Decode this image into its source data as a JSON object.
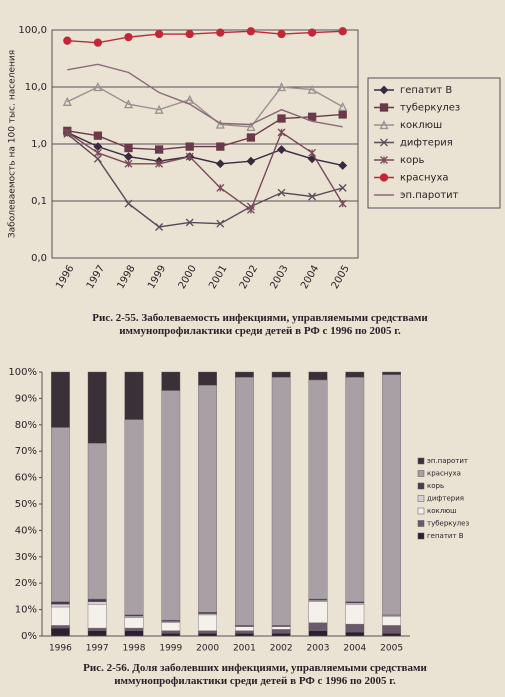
{
  "chart_data": [
    {
      "type": "line",
      "y_label": "Заболеваемость на 100 тыс. населения",
      "caption": "Рис. 2-55. Заболеваемость инфекциями, управляемыми средствами иммунопрофилактики среди детей в РФ с 1996 по 2005 г.",
      "categories": [
        "1996",
        "1997",
        "1998",
        "1999",
        "2000",
        "2001",
        "2002",
        "2003",
        "2004",
        "2005"
      ],
      "ylim": [
        0.01,
        100
      ],
      "log_y": true,
      "grid": true,
      "legend": "right",
      "yticks": [
        {
          "value": 0.01,
          "label": "0,0"
        },
        {
          "value": 0.1,
          "label": "0,1"
        },
        {
          "value": 1,
          "label": "1,0"
        },
        {
          "value": 10,
          "label": "10,0"
        },
        {
          "value": 100,
          "label": "100,0"
        }
      ],
      "series": [
        {
          "name": "гепатит В",
          "color": "#3a2a40",
          "marker": "diamond",
          "values": [
            1.6,
            0.9,
            0.6,
            0.5,
            0.6,
            0.45,
            0.5,
            0.8,
            0.55,
            0.42
          ]
        },
        {
          "name": "туберкулез",
          "color": "#6b3a4a",
          "marker": "square",
          "values": [
            1.7,
            1.4,
            0.85,
            0.8,
            0.9,
            0.9,
            1.3,
            2.8,
            3.0,
            3.3
          ]
        },
        {
          "name": "коклюш",
          "color": "#9a9090",
          "marker": "triangle",
          "values": [
            5.5,
            10,
            5,
            4,
            6,
            2.2,
            2,
            10,
            9,
            4.5
          ]
        },
        {
          "name": "дифтерия",
          "color": "#5a4a5a",
          "marker": "x",
          "values": [
            1.5,
            0.55,
            0.09,
            0.035,
            0.042,
            0.04,
            0.08,
            0.14,
            0.12,
            0.17
          ]
        },
        {
          "name": "корь",
          "color": "#7a4a5a",
          "marker": "asterisk",
          "values": [
            1.6,
            0.7,
            0.45,
            0.45,
            0.6,
            0.17,
            0.07,
            1.6,
            0.7,
            0.09
          ]
        },
        {
          "name": "краснуха",
          "color": "#c0283a",
          "marker": "circle",
          "values": [
            65,
            60,
            75,
            85,
            85,
            90,
            95,
            85,
            90,
            95
          ]
        },
        {
          "name": "эп.паротит",
          "color": "#8a6a78",
          "marker": "none",
          "values": [
            20,
            25,
            18,
            8,
            5,
            2.3,
            2.2,
            4,
            2.5,
            2
          ]
        }
      ]
    },
    {
      "type": "stacked_bar",
      "caption": "Рис. 2-56. Доля заболевших инфекциями, управляемыми средствами иммунопрофилактики среди детей в РФ с 1996 по 2005 г.",
      "categories": [
        "1996",
        "1997",
        "1998",
        "1999",
        "2000",
        "2001",
        "2002",
        "2003",
        "2004",
        "2005"
      ],
      "ylim": [
        0,
        100
      ],
      "grid": false,
      "legend": "right",
      "yticks": [
        {
          "value": 0,
          "label": "0%"
        },
        {
          "value": 10,
          "label": "10%"
        },
        {
          "value": 20,
          "label": "20%"
        },
        {
          "value": 30,
          "label": "30%"
        },
        {
          "value": 40,
          "label": "40%"
        },
        {
          "value": 50,
          "label": "50%"
        },
        {
          "value": 60,
          "label": "60%"
        },
        {
          "value": 70,
          "label": "70%"
        },
        {
          "value": 80,
          "label": "80%"
        },
        {
          "value": 90,
          "label": "90%"
        },
        {
          "value": 100,
          "label": "100%"
        }
      ],
      "series": [
        {
          "name": "гепатит В",
          "color": "#2a2030",
          "values": [
            3,
            2,
            2,
            1,
            1,
            1,
            1,
            2,
            1.5,
            1
          ]
        },
        {
          "name": "туберкулез",
          "color": "#6a5a6a",
          "values": [
            1,
            1,
            1,
            1,
            1,
            1,
            1.5,
            3,
            3,
            3
          ]
        },
        {
          "name": "коклюш",
          "color": "#f4f0ea",
          "values": [
            7,
            9,
            4,
            3,
            6,
            1.5,
            1,
            8,
            7.5,
            3.5
          ]
        },
        {
          "name": "дифтерия",
          "color": "#d8d0d8",
          "values": [
            1,
            1,
            0.5,
            0.5,
            0.5,
            0.2,
            0.2,
            0.5,
            0.5,
            0.3
          ]
        },
        {
          "name": "корь",
          "color": "#4a3a4a",
          "values": [
            1,
            1,
            0.5,
            0.5,
            0.5,
            0.3,
            0.3,
            0.5,
            0.5,
            0.2
          ]
        },
        {
          "name": "краснуха",
          "color": "#a8a0a4",
          "values": [
            66,
            59,
            74,
            87,
            86,
            94,
            94,
            83,
            85,
            91
          ]
        },
        {
          "name": "эп.паротит",
          "color": "#3a3038",
          "values": [
            21,
            27,
            18,
            7,
            5,
            2,
            2,
            3,
            2,
            1
          ]
        }
      ]
    }
  ]
}
